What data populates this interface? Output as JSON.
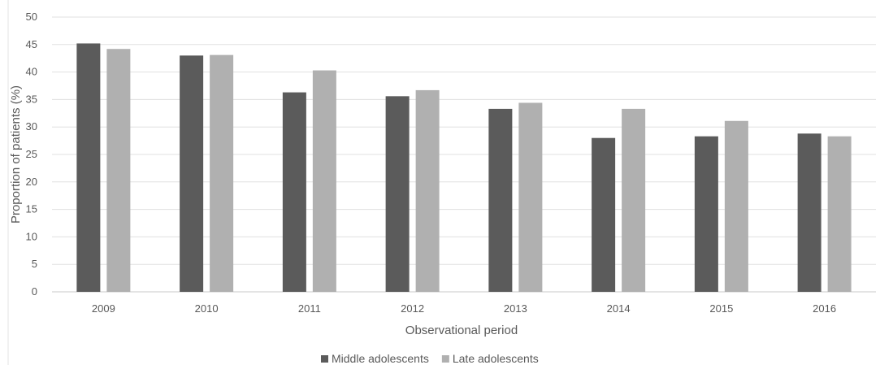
{
  "chart_data": {
    "type": "bar",
    "title": "",
    "xlabel": "Observational period",
    "ylabel": "Proportion of patients (%)",
    "categories": [
      "2009",
      "2010",
      "2011",
      "2012",
      "2013",
      "2014",
      "2015",
      "2016"
    ],
    "series": [
      {
        "name": "Middle adolescents",
        "color": "#5b5b5b",
        "values": [
          45.2,
          43.0,
          36.3,
          35.6,
          33.3,
          28.0,
          28.3,
          28.8
        ]
      },
      {
        "name": "Late adolescents",
        "color": "#b0b0b0",
        "values": [
          44.2,
          43.1,
          40.3,
          36.7,
          34.4,
          33.3,
          31.1,
          28.3
        ]
      }
    ],
    "ylim": [
      0,
      50
    ],
    "yticks": [
      0,
      5,
      10,
      15,
      20,
      25,
      30,
      35,
      40,
      45,
      50
    ],
    "grid": true,
    "legend_position": "bottom"
  }
}
